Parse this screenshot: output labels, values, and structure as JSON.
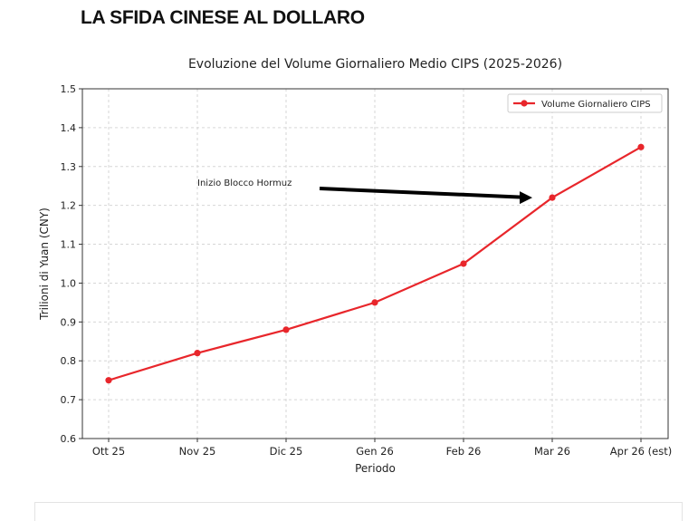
{
  "headline": "LA SFIDA CINESE AL DOLLARO",
  "chart_data": {
    "type": "line",
    "title": "Evoluzione del Volume Giornaliero Medio CIPS (2025-2026)",
    "xlabel": "Periodo",
    "ylabel": "Trilioni di Yuan (CNY)",
    "categories": [
      "Ott 25",
      "Nov 25",
      "Dic 25",
      "Gen 26",
      "Feb 26",
      "Mar 26",
      "Apr 26 (est)"
    ],
    "series": [
      {
        "name": "Volume Giornaliero CIPS",
        "values": [
          0.75,
          0.82,
          0.88,
          0.95,
          1.05,
          1.22,
          1.35
        ],
        "color": "#e8262b"
      }
    ],
    "ylim": [
      0.6,
      1.5
    ],
    "yticks": [
      "0.6",
      "0.7",
      "0.8",
      "0.9",
      "1.0",
      "1.1",
      "1.2",
      "1.3",
      "1.4",
      "1.5"
    ],
    "grid": true,
    "legend": "top-right",
    "annotation": {
      "text": "Inizio Blocco Hormuz",
      "target_category": "Mar 26",
      "target_value": 1.22
    }
  }
}
